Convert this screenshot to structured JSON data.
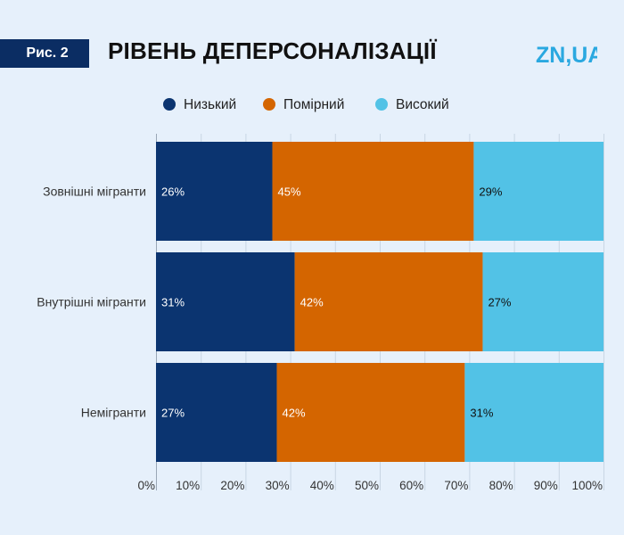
{
  "header": {
    "figure_label": "Рис. 2",
    "title": "РІВЕНЬ ДЕПЕРСОНАЛІЗАЦІЇ",
    "logo_text": "ZN,UA"
  },
  "colors": {
    "background": "#e6f0fb",
    "low": "#0b3470",
    "moderate": "#d46500",
    "high": "#52c2e6",
    "badge": "#0b2d63",
    "logo": "#2aa8e0"
  },
  "chart_data": {
    "type": "bar",
    "orientation": "horizontal",
    "stacked": true,
    "categories": [
      "Зовнішні мігранти",
      "Внутрішні мігранти",
      "Немігранти"
    ],
    "series": [
      {
        "name": "Низький",
        "values": [
          26,
          31,
          27
        ],
        "color": "#0b3470"
      },
      {
        "name": "Помірний",
        "values": [
          45,
          42,
          42
        ],
        "color": "#d46500"
      },
      {
        "name": "Високий",
        "values": [
          29,
          27,
          31
        ],
        "color": "#52c2e6"
      }
    ],
    "value_labels": [
      [
        "26%",
        "45%",
        "29%"
      ],
      [
        "31%",
        "42%",
        "27%"
      ],
      [
        "27%",
        "42%",
        "31%"
      ]
    ],
    "xlim": [
      0,
      100
    ],
    "xticks": [
      "0%",
      "10%",
      "20%",
      "30%",
      "40%",
      "50%",
      "60%",
      "70%",
      "80%",
      "90%",
      "100%"
    ],
    "legend_position": "top-center",
    "grid": true
  }
}
